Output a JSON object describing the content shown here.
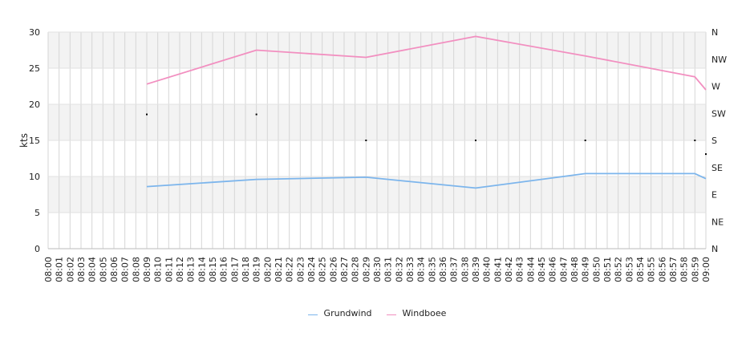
{
  "chart_data": {
    "type": "line",
    "ylabel": "kts",
    "ylim": [
      0,
      30
    ],
    "yticks": [
      "0",
      "5",
      "10",
      "15",
      "20",
      "25",
      "30"
    ],
    "y2_ticks": [
      "N",
      "NE",
      "E",
      "SE",
      "S",
      "SW",
      "W",
      "NW",
      "N"
    ],
    "x_labels": [
      "08:00",
      "08:01",
      "08:02",
      "08:03",
      "08:04",
      "08:05",
      "08:06",
      "08:07",
      "08:08",
      "08:09",
      "08:10",
      "08:11",
      "08:12",
      "08:13",
      "08:14",
      "08:15",
      "08:16",
      "08:17",
      "08:18",
      "08:19",
      "08:20",
      "08:21",
      "08:22",
      "08:23",
      "08:24",
      "08:25",
      "08:26",
      "08:27",
      "08:28",
      "08:29",
      "08:30",
      "08:31",
      "08:32",
      "08:33",
      "08:34",
      "08:35",
      "08:36",
      "08:37",
      "08:38",
      "08:39",
      "08:40",
      "08:41",
      "08:42",
      "08:43",
      "08:44",
      "08:45",
      "08:46",
      "08:47",
      "08:48",
      "08:49",
      "08:50",
      "08:51",
      "08:52",
      "08:53",
      "08:54",
      "08:55",
      "08:56",
      "08:57",
      "08:58",
      "08:59",
      "09:00"
    ],
    "grid": true,
    "legend_position": "bottom",
    "series": [
      {
        "name": "Grundwind",
        "color": "#7cb5ec",
        "points": [
          [
            9,
            8.6
          ],
          [
            19,
            9.6
          ],
          [
            29,
            9.9
          ],
          [
            39,
            8.4
          ],
          [
            49,
            10.4
          ],
          [
            59,
            10.4
          ],
          [
            60,
            9.7
          ]
        ]
      },
      {
        "name": "Windboee",
        "color": "#f28fc0",
        "points": [
          [
            9,
            22.8
          ],
          [
            19,
            27.5
          ],
          [
            29,
            26.5
          ],
          [
            39,
            29.4
          ],
          [
            49,
            26.7
          ],
          [
            59,
            23.8
          ],
          [
            60,
            22.0
          ]
        ]
      }
    ],
    "direction_markers": [
      [
        9,
        18.6
      ],
      [
        19,
        18.6
      ],
      [
        29,
        15.0
      ],
      [
        39,
        15.0
      ],
      [
        49,
        15.0
      ],
      [
        59,
        15.0
      ],
      [
        60,
        13.1
      ]
    ]
  }
}
